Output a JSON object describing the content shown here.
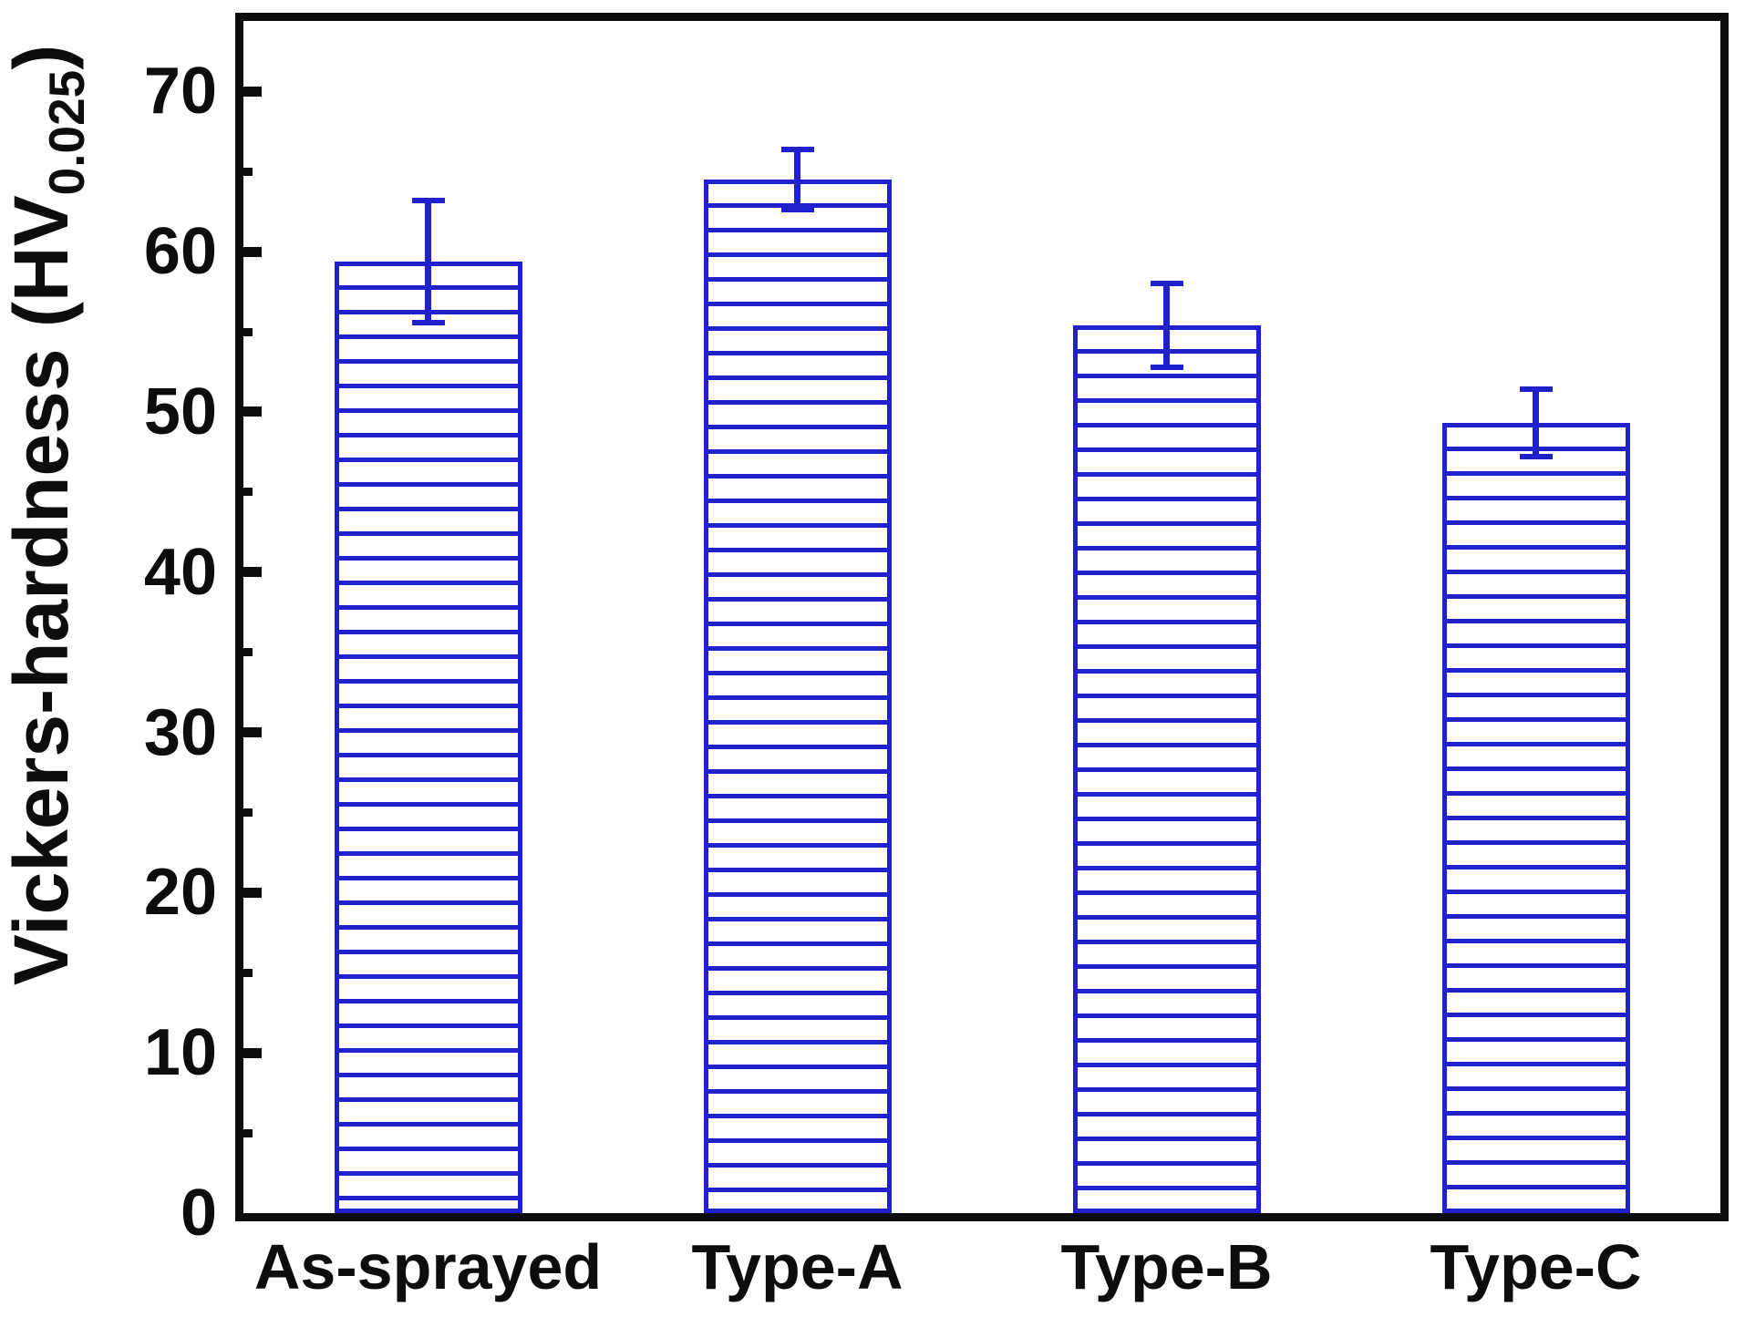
{
  "chart_data": {
    "type": "bar",
    "title": "",
    "ylabel_main": "Vickers-hardness (HV",
    "ylabel_subscript": "0.025",
    "ylabel_close": ")",
    "xlabel": "",
    "categories": [
      "As-sprayed",
      "Type-A",
      "Type-B",
      "Type-C"
    ],
    "values": [
      59.4,
      64.5,
      55.4,
      49.3
    ],
    "error_bars": [
      3.8,
      1.9,
      2.6,
      2.1
    ],
    "ylim": [
      0,
      74.4
    ],
    "yticks": [
      0,
      10,
      20,
      30,
      40,
      50,
      60,
      70
    ],
    "minor_tick_step": 5,
    "grid": false,
    "legend": "none",
    "bar_fill_pattern": "horizontal-hatch",
    "bar_color": "#2020cc",
    "axis_color": "#0d0d0d",
    "background_color": "#ffffff"
  }
}
